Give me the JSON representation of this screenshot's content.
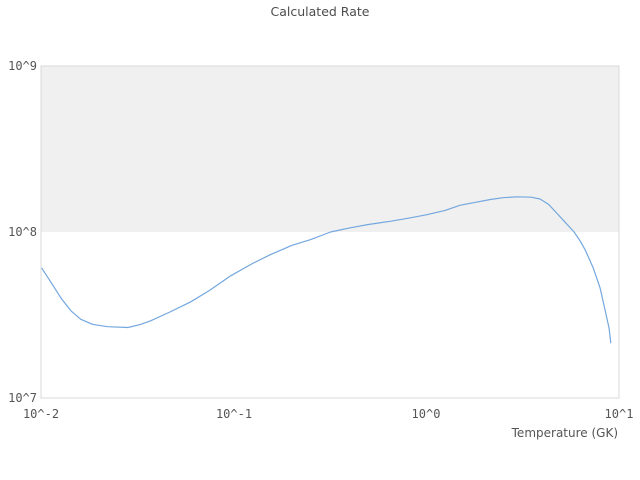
{
  "title": "Calculated Rate",
  "colors": {
    "line": "#74a7de",
    "band": "#f0f0f0",
    "plot_border": "#d9d9d9",
    "text": "#555555",
    "title_text": "#4d4d4d"
  },
  "x_axis": {
    "label": "Temperature (GK)",
    "ticks": [
      "10^-2",
      "10^-1",
      "10^0",
      "10^1"
    ]
  },
  "y_axis": {
    "ticks": [
      "10^7",
      "10^8",
      "10^9"
    ]
  },
  "chart_data": {
    "type": "line",
    "title": "Calculated Rate",
    "xlabel": "Temperature (GK)",
    "ylabel": "",
    "x_scale": "log",
    "y_scale": "log",
    "xlim": [
      0.01,
      10
    ],
    "ylim": [
      10000000.0,
      1000000000.0
    ],
    "grid": false,
    "legend": false,
    "shaded_band": {
      "y_from": 100000000.0,
      "y_to": 1000000000.0
    },
    "series": [
      {
        "name": "Calculated Rate",
        "x": [
          0.0101,
          0.0115,
          0.0127,
          0.0143,
          0.0161,
          0.0185,
          0.0222,
          0.0283,
          0.033,
          0.0372,
          0.0455,
          0.0599,
          0.075,
          0.0965,
          0.125,
          0.155,
          0.2,
          0.251,
          0.318,
          0.403,
          0.5,
          0.649,
          0.8,
          1.0,
          1.25,
          1.5,
          1.8,
          2.15,
          2.5,
          2.96,
          3.5,
          3.89,
          4.3,
          4.66,
          5.2,
          5.85,
          6.3,
          6.68,
          7.34,
          7.98,
          8.46,
          8.87,
          9.07
        ],
        "y": [
          60500000.0,
          48000000.0,
          40000000.0,
          33500000.0,
          29800000.0,
          27800000.0,
          26900000.0,
          26600000.0,
          27800000.0,
          29200000.0,
          32500000.0,
          38000000.0,
          44500000.0,
          54500000.0,
          64500000.0,
          73000000.0,
          83000000.0,
          90000000.0,
          100000000.0,
          106000000.0,
          111000000.0,
          116000000.0,
          121000000.0,
          127000000.0,
          135000000.0,
          145000000.0,
          151000000.0,
          157000000.0,
          161000000.0,
          163000000.0,
          162000000.0,
          158000000.0,
          147000000.0,
          133000000.0,
          116000000.0,
          100000000.0,
          88000000.0,
          78000000.0,
          61000000.0,
          46000000.0,
          34000000.0,
          26500000.0,
          21500000.0
        ]
      }
    ]
  }
}
